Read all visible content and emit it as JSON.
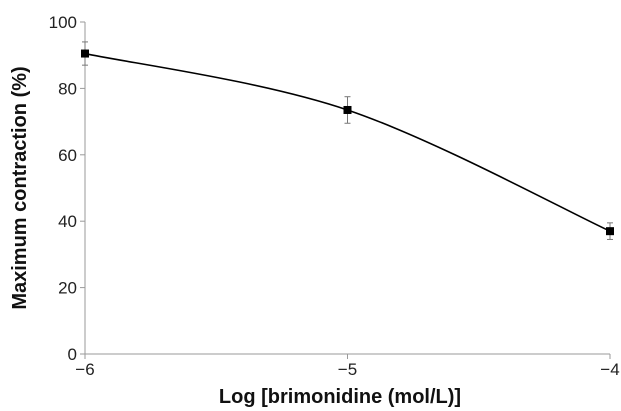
{
  "chart_data": {
    "type": "line",
    "title": "",
    "xlabel": "Log [brimonidine (mol/L)]",
    "ylabel": "Maximum contraction (%)",
    "xlim": [
      -6,
      -4
    ],
    "ylim": [
      0,
      100
    ],
    "x_ticks": [
      -6,
      -5,
      -4
    ],
    "x_tick_labels": [
      "−6",
      "−5",
      "−4"
    ],
    "y_ticks": [
      0,
      20,
      40,
      60,
      80,
      100
    ],
    "y_tick_labels": [
      "0",
      "20",
      "40",
      "60",
      "80",
      "100"
    ],
    "grid": false,
    "legend": "none",
    "marker": "square",
    "smooth": true,
    "color": "#000000",
    "series": [
      {
        "x": [
          -6,
          -5,
          -4
        ],
        "y": [
          90.5,
          73.5,
          37
        ],
        "error": [
          3.5,
          4,
          2.5
        ]
      }
    ]
  }
}
